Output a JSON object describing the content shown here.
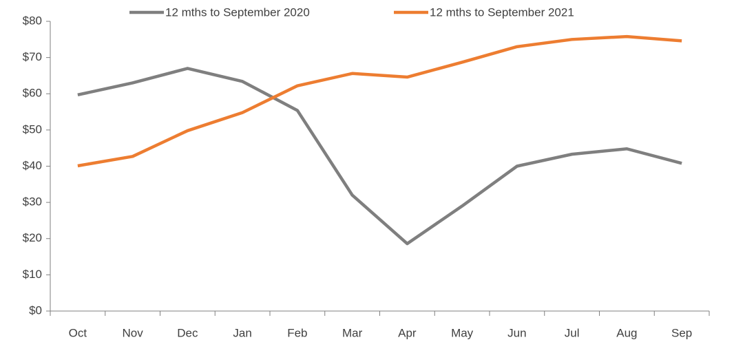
{
  "chart_data": {
    "type": "line",
    "categories": [
      "Oct",
      "Nov",
      "Dec",
      "Jan",
      "Feb",
      "Mar",
      "Apr",
      "May",
      "Jun",
      "Jul",
      "Aug",
      "Sep"
    ],
    "series": [
      {
        "name": "12 mths to September 2020",
        "color": "#7f7f7f",
        "values": [
          59.7,
          63,
          67,
          63.4,
          55.4,
          32,
          18.6,
          29,
          40,
          43.3,
          44.8,
          40.8
        ]
      },
      {
        "name": "12 mths to September 2021",
        "color": "#ed7d31",
        "values": [
          40.1,
          42.7,
          49.8,
          54.8,
          62.2,
          65.6,
          64.6,
          68.7,
          73,
          75,
          75.8,
          74.6
        ]
      }
    ],
    "ylim": [
      0,
      80
    ],
    "yticks": [
      {
        "value": 0,
        "label": "$0"
      },
      {
        "value": 10,
        "label": "$10"
      },
      {
        "value": 20,
        "label": "$20"
      },
      {
        "value": 30,
        "label": "$30"
      },
      {
        "value": 40,
        "label": "$40"
      },
      {
        "value": 50,
        "label": "$50"
      },
      {
        "value": 60,
        "label": "$60"
      },
      {
        "value": 70,
        "label": "$70"
      },
      {
        "value": 80,
        "label": "$80"
      }
    ],
    "legend": "top",
    "grid": false
  }
}
